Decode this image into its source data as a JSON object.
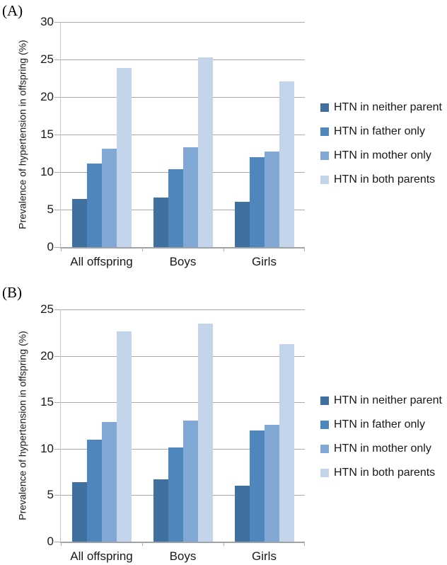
{
  "figure": {
    "background": "#ffffff",
    "gridline_color": "#A9A9A9",
    "x_axis_color": "#9EA3A8",
    "y_axis_color": "#C3C8CE",
    "text_color": "#191919"
  },
  "chart_data": [
    {
      "type": "bar",
      "panel_label": "(A)",
      "title": "",
      "xlabel": "",
      "ylabel": "Prevalence of hypertension in offspring (%)",
      "ylim": [
        0,
        30
      ],
      "ystep": 5,
      "grid": true,
      "legend_position": "right",
      "categories": [
        "All offspring",
        "Boys",
        "Girls"
      ],
      "series": [
        {
          "name": "HTN in neither parent",
          "color": "#40709F",
          "values": [
            6.4,
            6.6,
            6.0
          ]
        },
        {
          "name": "HTN in father only",
          "color": "#4F86BE",
          "values": [
            11.1,
            10.4,
            12.0
          ]
        },
        {
          "name": "HTN in mother only",
          "color": "#82A9D6",
          "values": [
            13.1,
            13.3,
            12.7
          ]
        },
        {
          "name": "HTN in both parents",
          "color": "#C3D4EB",
          "values": [
            23.9,
            25.3,
            22.1
          ]
        }
      ]
    },
    {
      "type": "bar",
      "panel_label": "(B)",
      "title": "",
      "xlabel": "",
      "ylabel": "Prevalence of hypertension in offspring (%)",
      "ylim": [
        0,
        25
      ],
      "ystep": 5,
      "grid": true,
      "legend_position": "right",
      "categories": [
        "All offspring",
        "Boys",
        "Girls"
      ],
      "series": [
        {
          "name": "HTN in neither parent",
          "color": "#40709F",
          "values": [
            6.4,
            6.7,
            6.0
          ]
        },
        {
          "name": "HTN in father only",
          "color": "#4F86BE",
          "values": [
            11.0,
            10.1,
            12.0
          ]
        },
        {
          "name": "HTN in mother only",
          "color": "#82A9D6",
          "values": [
            12.9,
            13.0,
            12.6
          ]
        },
        {
          "name": "HTN in both parents",
          "color": "#C3D4EB",
          "values": [
            22.6,
            23.5,
            21.3
          ]
        }
      ]
    }
  ]
}
